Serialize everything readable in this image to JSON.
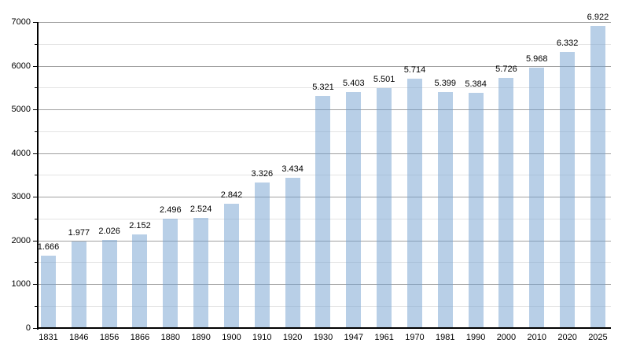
{
  "chart_data": {
    "type": "bar",
    "title": "",
    "xlabel": "",
    "ylabel": "",
    "categories": [
      "1831",
      "1846",
      "1856",
      "1866",
      "1880",
      "1890",
      "1900",
      "1910",
      "1920",
      "1930",
      "1947",
      "1961",
      "1970",
      "1981",
      "1990",
      "2000",
      "2010",
      "2020",
      "2025"
    ],
    "values": [
      1666,
      1977,
      2026,
      2152,
      2496,
      2524,
      2842,
      3326,
      3434,
      5321,
      5403,
      5501,
      5714,
      5399,
      5384,
      5726,
      5968,
      6332,
      6922
    ],
    "bar_labels": [
      "1.666",
      "1.977",
      "2.026",
      "2.152",
      "2.496",
      "2.524",
      "2.842",
      "3.326",
      "3.434",
      "5.321",
      "5.403",
      "5.501",
      "5.714",
      "5.399",
      "5.384",
      "5.726",
      "5.968",
      "6.332",
      "6.922"
    ],
    "ylim": [
      0,
      7000
    ],
    "y_major_ticks": [
      0,
      1000,
      2000,
      3000,
      4000,
      5000,
      6000,
      7000
    ],
    "y_minor_step": 500,
    "grid": "horizontal",
    "legend": "none",
    "colors": {
      "bar_fill": "#729fcf",
      "bar_fill_opacity": 0.5,
      "grid_major": "#a0a0a0",
      "grid_minor": "#e4e4e4",
      "axis": "#000000",
      "text": "#000000",
      "background": "#ffffff"
    }
  }
}
